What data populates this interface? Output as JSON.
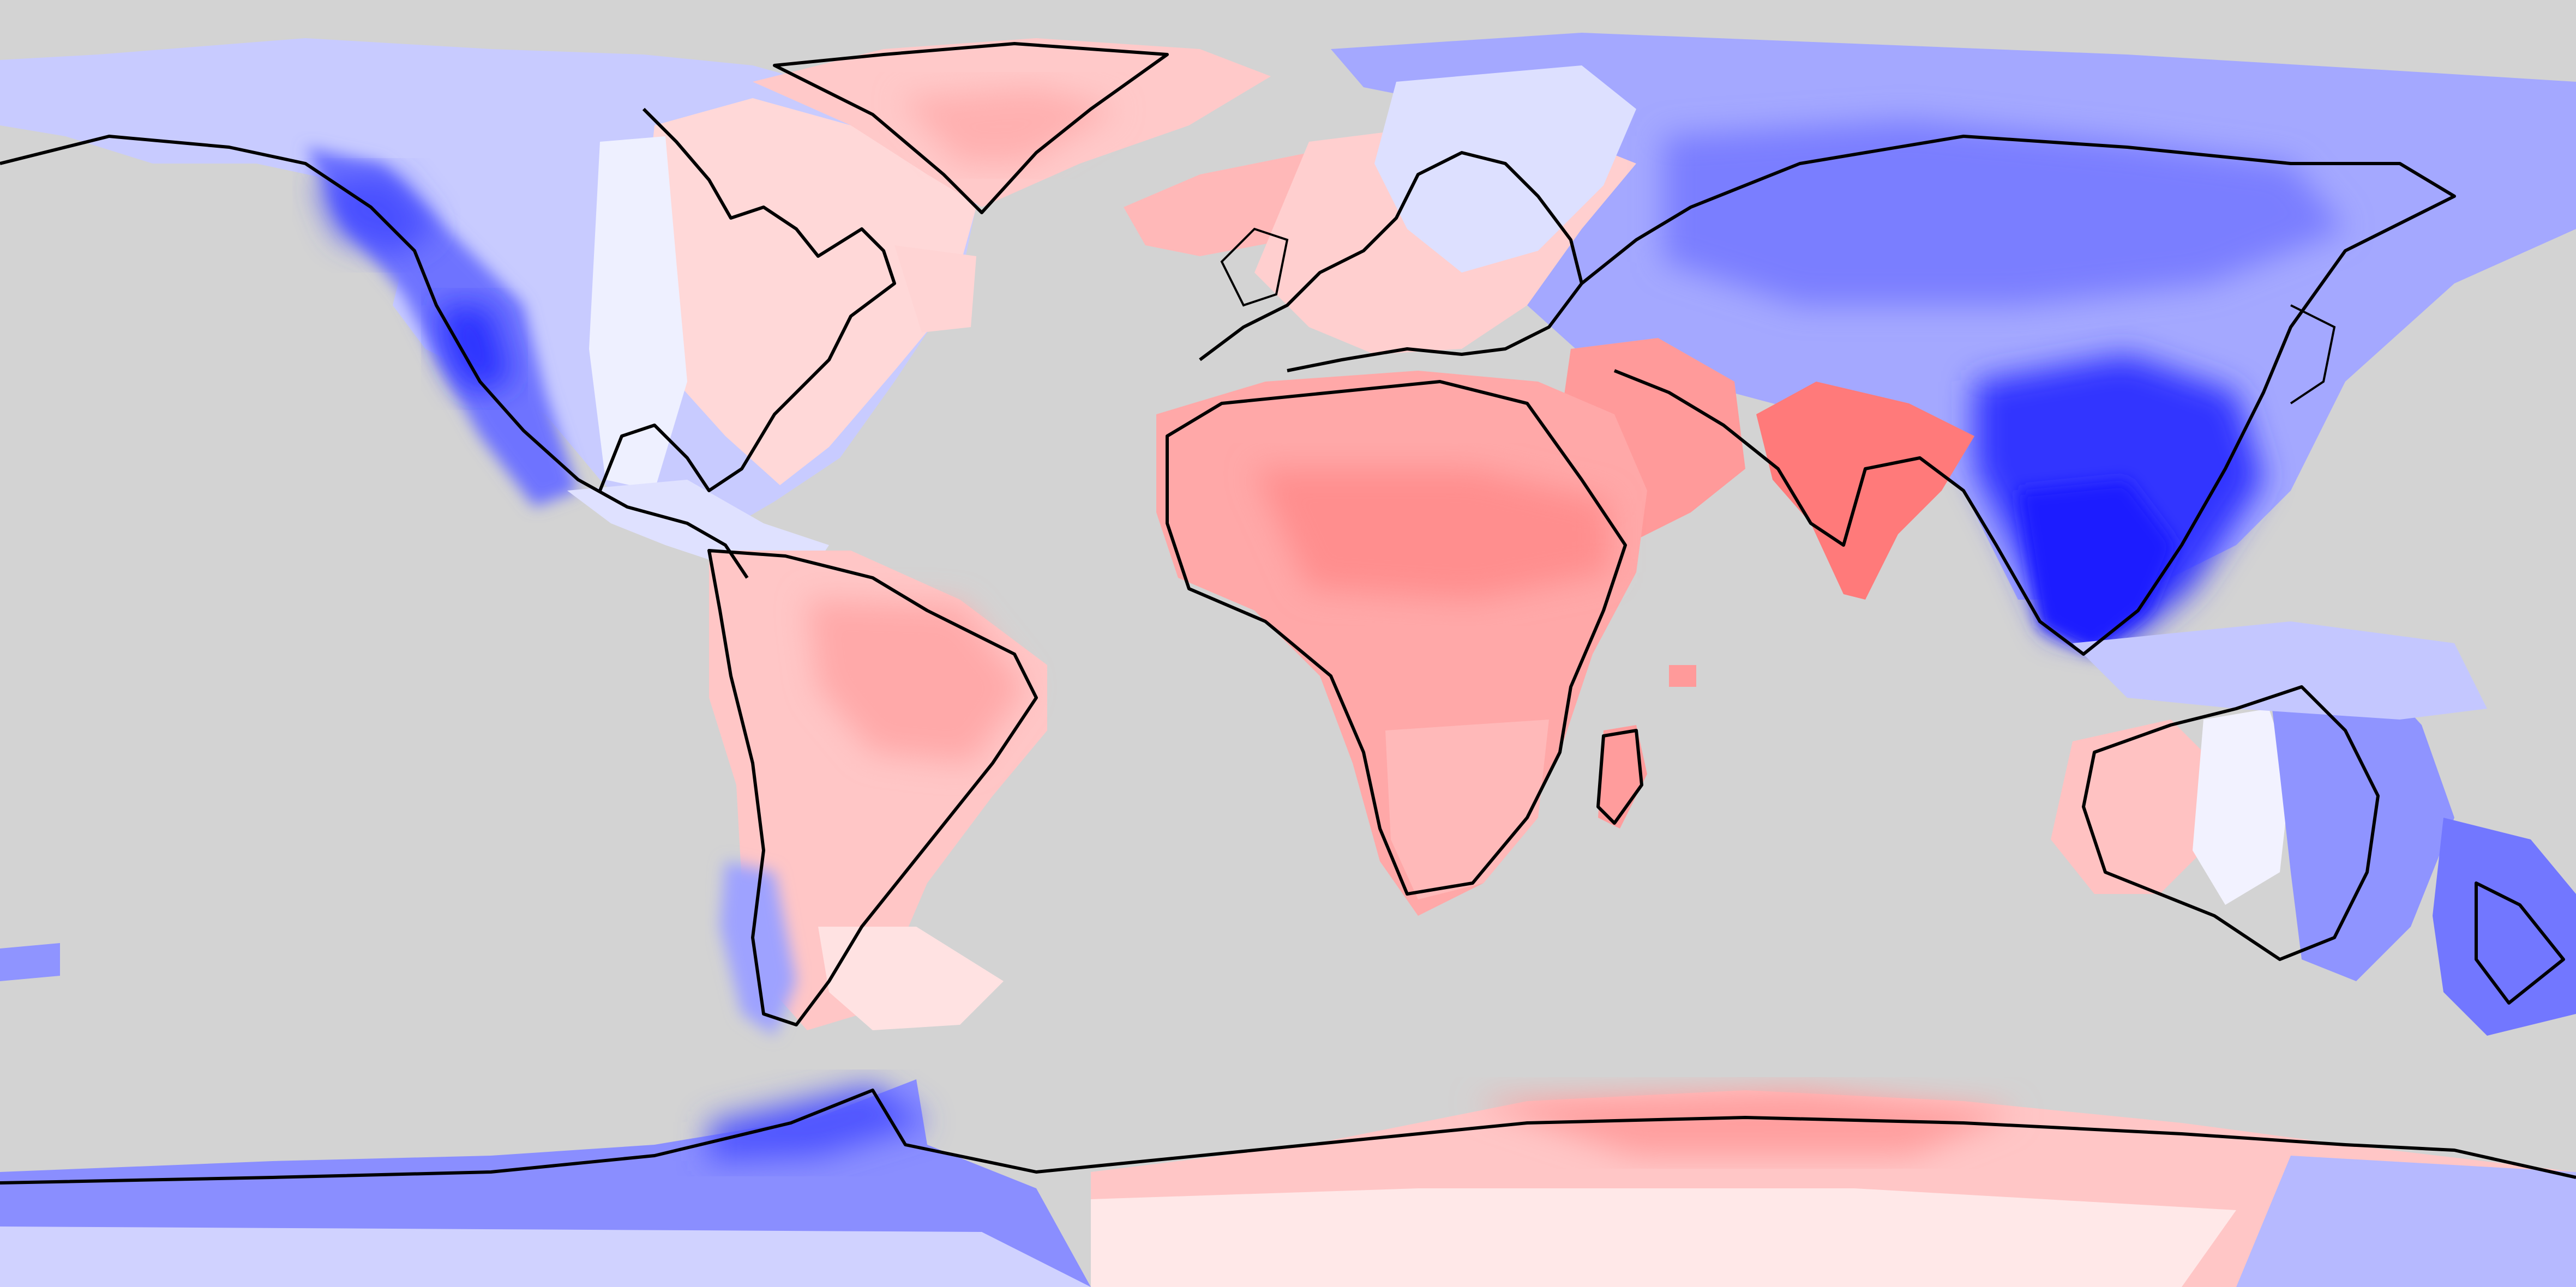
{
  "map": {
    "projection": "equirectangular",
    "lon_range": [
      -180,
      180
    ],
    "lat_range": [
      -90,
      90
    ],
    "ocean_color": "#d3d3d3",
    "coastline_color": "#000000",
    "colormap": {
      "name": "diverging-blue-white-red",
      "negative_color": "#1a1aff",
      "neutral_color": "#ffffff",
      "positive_color": "#ff4d4d"
    },
    "legend": null,
    "title": ""
  },
  "regions": [
    {
      "name": "alaska-yukon",
      "anomaly": -0.6
    },
    {
      "name": "western-north-america",
      "anomaly": -0.75
    },
    {
      "name": "canada-central",
      "anomaly": -0.25
    },
    {
      "name": "eastern-north-america",
      "anomaly": 0.15
    },
    {
      "name": "greenland",
      "anomaly": 0.3
    },
    {
      "name": "iceland-sea",
      "anomaly": 0.35
    },
    {
      "name": "western-europe",
      "anomaly": 0.3
    },
    {
      "name": "eastern-europe",
      "anomaly": -0.15
    },
    {
      "name": "siberia",
      "anomaly": -0.45
    },
    {
      "name": "central-asia",
      "anomaly": -0.55
    },
    {
      "name": "east-asia",
      "anomaly": -0.85
    },
    {
      "name": "southeast-asia",
      "anomaly": -0.95
    },
    {
      "name": "india",
      "anomaly": 0.7
    },
    {
      "name": "arabia",
      "anomaly": 0.55
    },
    {
      "name": "sahara",
      "anomaly": 0.5
    },
    {
      "name": "sub-saharan-africa",
      "anomaly": 0.55
    },
    {
      "name": "southern-africa",
      "anomaly": 0.35
    },
    {
      "name": "madagascar",
      "anomaly": 0.45
    },
    {
      "name": "central-america",
      "anomaly": -0.2
    },
    {
      "name": "amazon",
      "anomaly": 0.4
    },
    {
      "name": "patagonia",
      "anomaly": -0.35
    },
    {
      "name": "western-australia",
      "anomaly": 0.3
    },
    {
      "name": "eastern-australia",
      "anomaly": -0.45
    },
    {
      "name": "new-zealand",
      "anomaly": -0.55
    },
    {
      "name": "west-antarctica",
      "anomaly": -0.6
    },
    {
      "name": "east-antarctica",
      "anomaly": 0.4
    }
  ]
}
